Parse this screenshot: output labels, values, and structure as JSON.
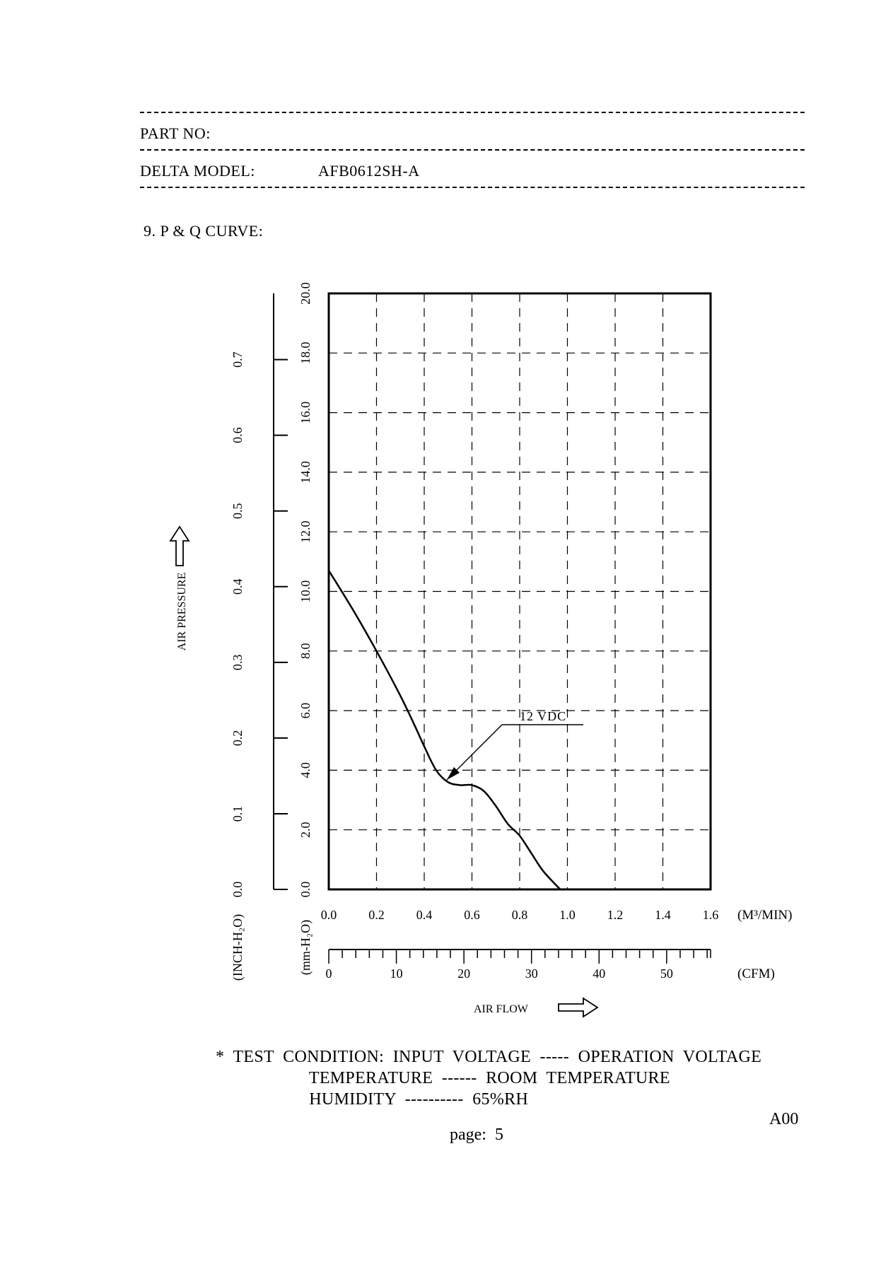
{
  "header": {
    "part_no_label": "PART NO:",
    "part_no_value": "",
    "model_label": "DELTA MODEL:",
    "model_value": "AFB0612SH-A"
  },
  "section_title": "9.  P  &  Q  CURVE:",
  "chart_data": {
    "type": "line",
    "x_top_unit": "(M³/MIN)",
    "x_bottom_unit": "(CFM)",
    "x_title": "AIR FLOW",
    "y_title": "AIR PRESSURE",
    "y_inner_unit": "(mm-H₂O)",
    "y_outer_unit": "(INCH-H₂O)",
    "xlim": [
      0,
      1.6
    ],
    "ylim": [
      0,
      20
    ],
    "x_ticks_top": [
      "0.0",
      "0.2",
      "0.4",
      "0.6",
      "0.8",
      "1.0",
      "1.2",
      "1.4",
      "1.6"
    ],
    "x_ticks_bottom": [
      "0",
      "10",
      "20",
      "30",
      "40",
      "50"
    ],
    "y_ticks_inner": [
      "0.0",
      "2.0",
      "4.0",
      "6.0",
      "8.0",
      "10.0",
      "12.0",
      "14.0",
      "16.0",
      "18.0",
      "20.0"
    ],
    "y_ticks_outer": [
      "0.0",
      "0.1",
      "0.2",
      "0.3",
      "0.4",
      "0.5",
      "0.6",
      "0.7"
    ],
    "grid": true,
    "series": [
      {
        "name": "12 VDC",
        "x": [
          0.0,
          0.1,
          0.2,
          0.3,
          0.36,
          0.4,
          0.45,
          0.5,
          0.55,
          0.6,
          0.65,
          0.7,
          0.75,
          0.8,
          0.85,
          0.9,
          0.97
        ],
        "y": [
          10.7,
          9.4,
          8.0,
          6.5,
          5.5,
          4.8,
          4.0,
          3.6,
          3.5,
          3.5,
          3.3,
          2.8,
          2.2,
          1.8,
          1.2,
          0.6,
          0.0
        ]
      }
    ]
  },
  "test_condition": {
    "lines": [
      "*  TEST  CONDITION:  INPUT  VOLTAGE  -----  OPERATION  VOLTAGE",
      "                     TEMPERATURE  ------  ROOM  TEMPERATURE",
      "                     HUMIDITY  ----------  65%RH"
    ]
  },
  "footer": {
    "revision": "A00",
    "page": "page:  5"
  }
}
